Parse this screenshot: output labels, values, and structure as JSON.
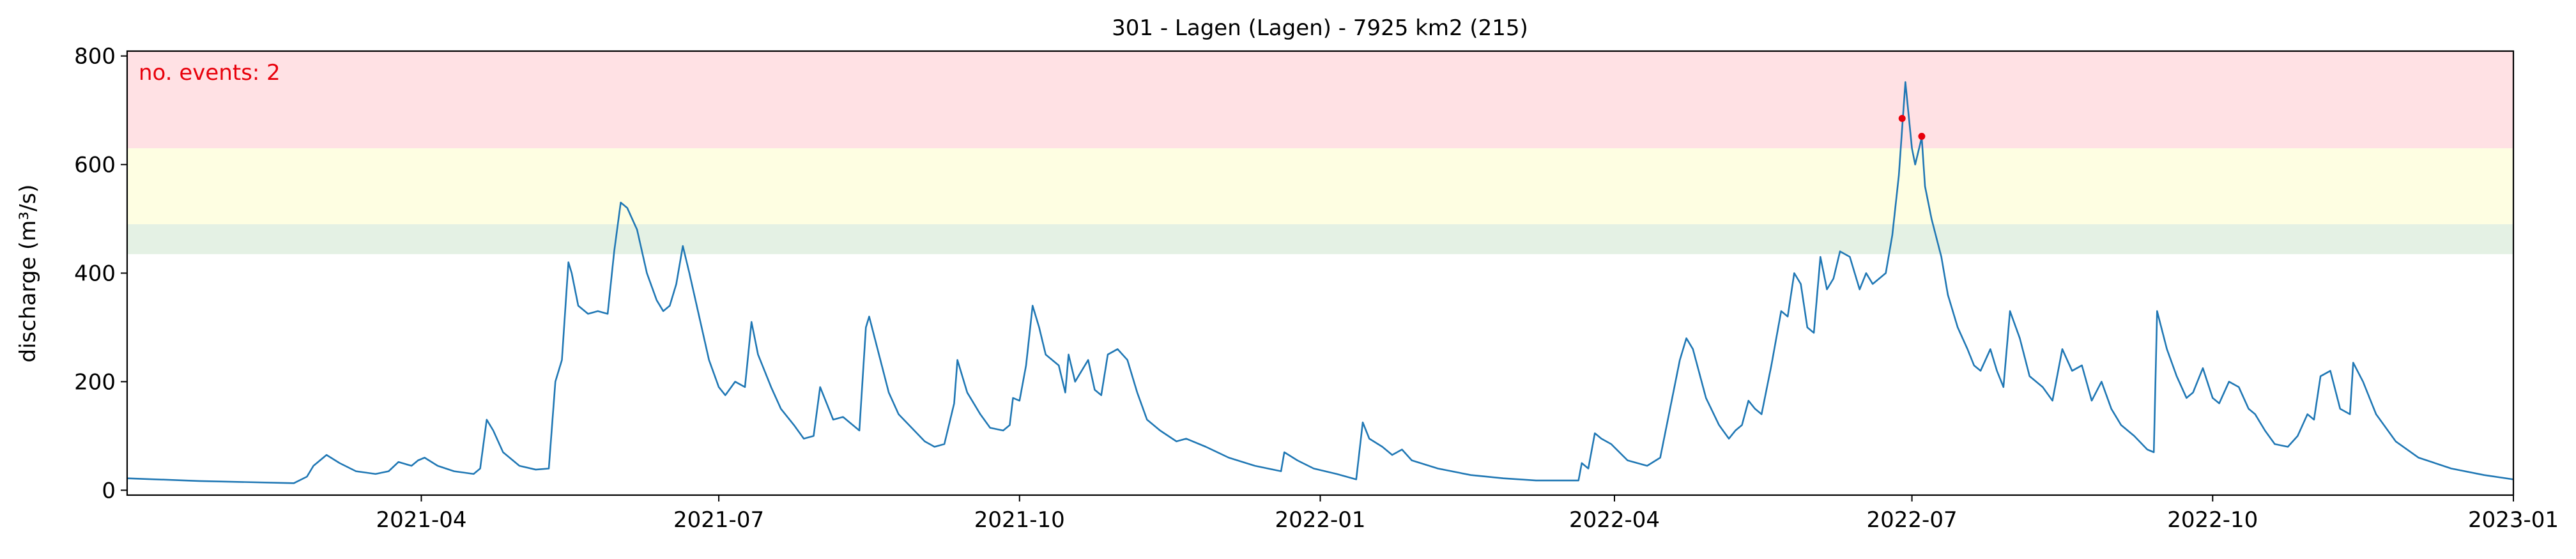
{
  "chart_data": {
    "type": "line",
    "title": "301 - Lagen (Lagen) - 7925 km2 (215)",
    "y_label": "discharge (m³/s)",
    "annotation": "no. events: 2",
    "annotation_color": "#e8000b",
    "xlim": [
      18628,
      19358
    ],
    "xticks": [
      {
        "value": 18718,
        "label": "2021-04"
      },
      {
        "value": 18809,
        "label": "2021-07"
      },
      {
        "value": 18901,
        "label": "2021-10"
      },
      {
        "value": 18993,
        "label": "2022-01"
      },
      {
        "value": 19083,
        "label": "2022-04"
      },
      {
        "value": 19174,
        "label": "2022-07"
      },
      {
        "value": 19266,
        "label": "2022-10"
      },
      {
        "value": 19358,
        "label": "2023-01"
      }
    ],
    "ylim": [
      -9,
      809
    ],
    "yticks": [
      0,
      200,
      400,
      600,
      800
    ],
    "bands": [
      {
        "ymin": 435,
        "ymax": 490,
        "color": "#e4f1e4"
      },
      {
        "ymin": 490,
        "ymax": 630,
        "color": "#fefee2"
      },
      {
        "ymin": 630,
        "ymax": 809,
        "color": "#ffe1e4"
      }
    ],
    "series": [
      {
        "color": "#1f77b4",
        "x": [
          18628,
          18650,
          18679,
          18683,
          18685,
          18689,
          18693,
          18698,
          18704,
          18708,
          18711,
          18715,
          18717,
          18719,
          18723,
          18728,
          18734,
          18736,
          18738,
          18740,
          18743,
          18748,
          18753,
          18757,
          18759,
          18761,
          18763,
          18764,
          18766,
          18769,
          18772,
          18775,
          18777,
          18779,
          18781,
          18784,
          18787,
          18790,
          18792,
          18794,
          18796,
          18798,
          18800,
          18803,
          18806,
          18809,
          18811,
          18814,
          18817,
          18819,
          18821,
          18825,
          18828,
          18832,
          18835,
          18838,
          18840,
          18842,
          18844,
          18847,
          18850,
          18852,
          18854,
          18855,
          18858,
          18861,
          18864,
          18868,
          18872,
          18875,
          18878,
          18881,
          18882,
          18885,
          18889,
          18892,
          18896,
          18898,
          18899,
          18901,
          18903,
          18905,
          18907,
          18909,
          18913,
          18915,
          18916,
          18918,
          18922,
          18924,
          18926,
          18928,
          18931,
          18934,
          18937,
          18940,
          18944,
          18949,
          18952,
          18958,
          18965,
          18973,
          18981,
          18982,
          18986,
          18991,
          18998,
          19004,
          19006,
          19008,
          19012,
          19015,
          19018,
          19021,
          19029,
          19039,
          19049,
          19059,
          19072,
          19073,
          19075,
          19077,
          19079,
          19082,
          19087,
          19093,
          19097,
          19100,
          19103,
          19105,
          19107,
          19111,
          19115,
          19118,
          19120,
          19122,
          19124,
          19126,
          19128,
          19131,
          19134,
          19136,
          19138,
          19140,
          19142,
          19144,
          19146,
          19148,
          19150,
          19152,
          19155,
          19158,
          19160,
          19162,
          19164,
          19166,
          19168,
          19170,
          19172,
          19174,
          19175,
          19177,
          19178,
          19180,
          19183,
          19185,
          19188,
          19191,
          19193,
          19195,
          19198,
          19200,
          19202,
          19204,
          19207,
          19210,
          19214,
          19217,
          19220,
          19223,
          19226,
          19229,
          19232,
          19235,
          19238,
          19242,
          19246,
          19248,
          19249,
          19252,
          19255,
          19258,
          19260,
          19263,
          19266,
          19268,
          19271,
          19274,
          19277,
          19279,
          19282,
          19285,
          19289,
          19292,
          19295,
          19297,
          19299,
          19302,
          19305,
          19308,
          19309,
          19312,
          19316,
          19322,
          19329,
          19339,
          19349,
          19358
        ],
        "values": [
          22,
          17,
          13,
          25,
          45,
          65,
          50,
          35,
          30,
          35,
          52,
          45,
          55,
          60,
          45,
          35,
          30,
          40,
          130,
          110,
          70,
          45,
          38,
          40,
          200,
          240,
          420,
          400,
          340,
          325,
          330,
          325,
          440,
          530,
          520,
          480,
          400,
          350,
          330,
          340,
          380,
          450,
          400,
          320,
          240,
          190,
          175,
          200,
          190,
          310,
          250,
          190,
          150,
          120,
          95,
          100,
          190,
          160,
          130,
          135,
          120,
          110,
          300,
          320,
          250,
          180,
          140,
          115,
          90,
          80,
          85,
          160,
          240,
          180,
          140,
          115,
          110,
          120,
          170,
          165,
          230,
          340,
          300,
          250,
          230,
          180,
          250,
          200,
          240,
          185,
          175,
          250,
          260,
          240,
          180,
          130,
          110,
          90,
          95,
          80,
          60,
          45,
          35,
          70,
          55,
          40,
          30,
          20,
          125,
          95,
          80,
          65,
          75,
          55,
          40,
          28,
          22,
          18,
          18,
          50,
          40,
          105,
          95,
          85,
          55,
          45,
          60,
          150,
          240,
          280,
          260,
          170,
          120,
          95,
          110,
          120,
          165,
          150,
          140,
          230,
          330,
          320,
          400,
          380,
          300,
          290,
          430,
          370,
          390,
          440,
          430,
          370,
          400,
          380,
          390,
          400,
          470,
          580,
          752,
          630,
          600,
          650,
          560,
          500,
          430,
          360,
          300,
          260,
          230,
          220,
          260,
          220,
          190,
          330,
          280,
          210,
          190,
          165,
          260,
          220,
          230,
          165,
          200,
          150,
          120,
          100,
          75,
          70,
          330,
          260,
          210,
          170,
          180,
          225,
          170,
          160,
          200,
          190,
          150,
          140,
          110,
          85,
          80,
          100,
          140,
          130,
          210,
          220,
          150,
          140,
          235,
          200,
          140,
          90,
          60,
          40,
          28,
          20
        ]
      }
    ],
    "events": {
      "color": "#e8000b",
      "x": [
        19171,
        19177
      ],
      "values": [
        685,
        652
      ]
    }
  }
}
